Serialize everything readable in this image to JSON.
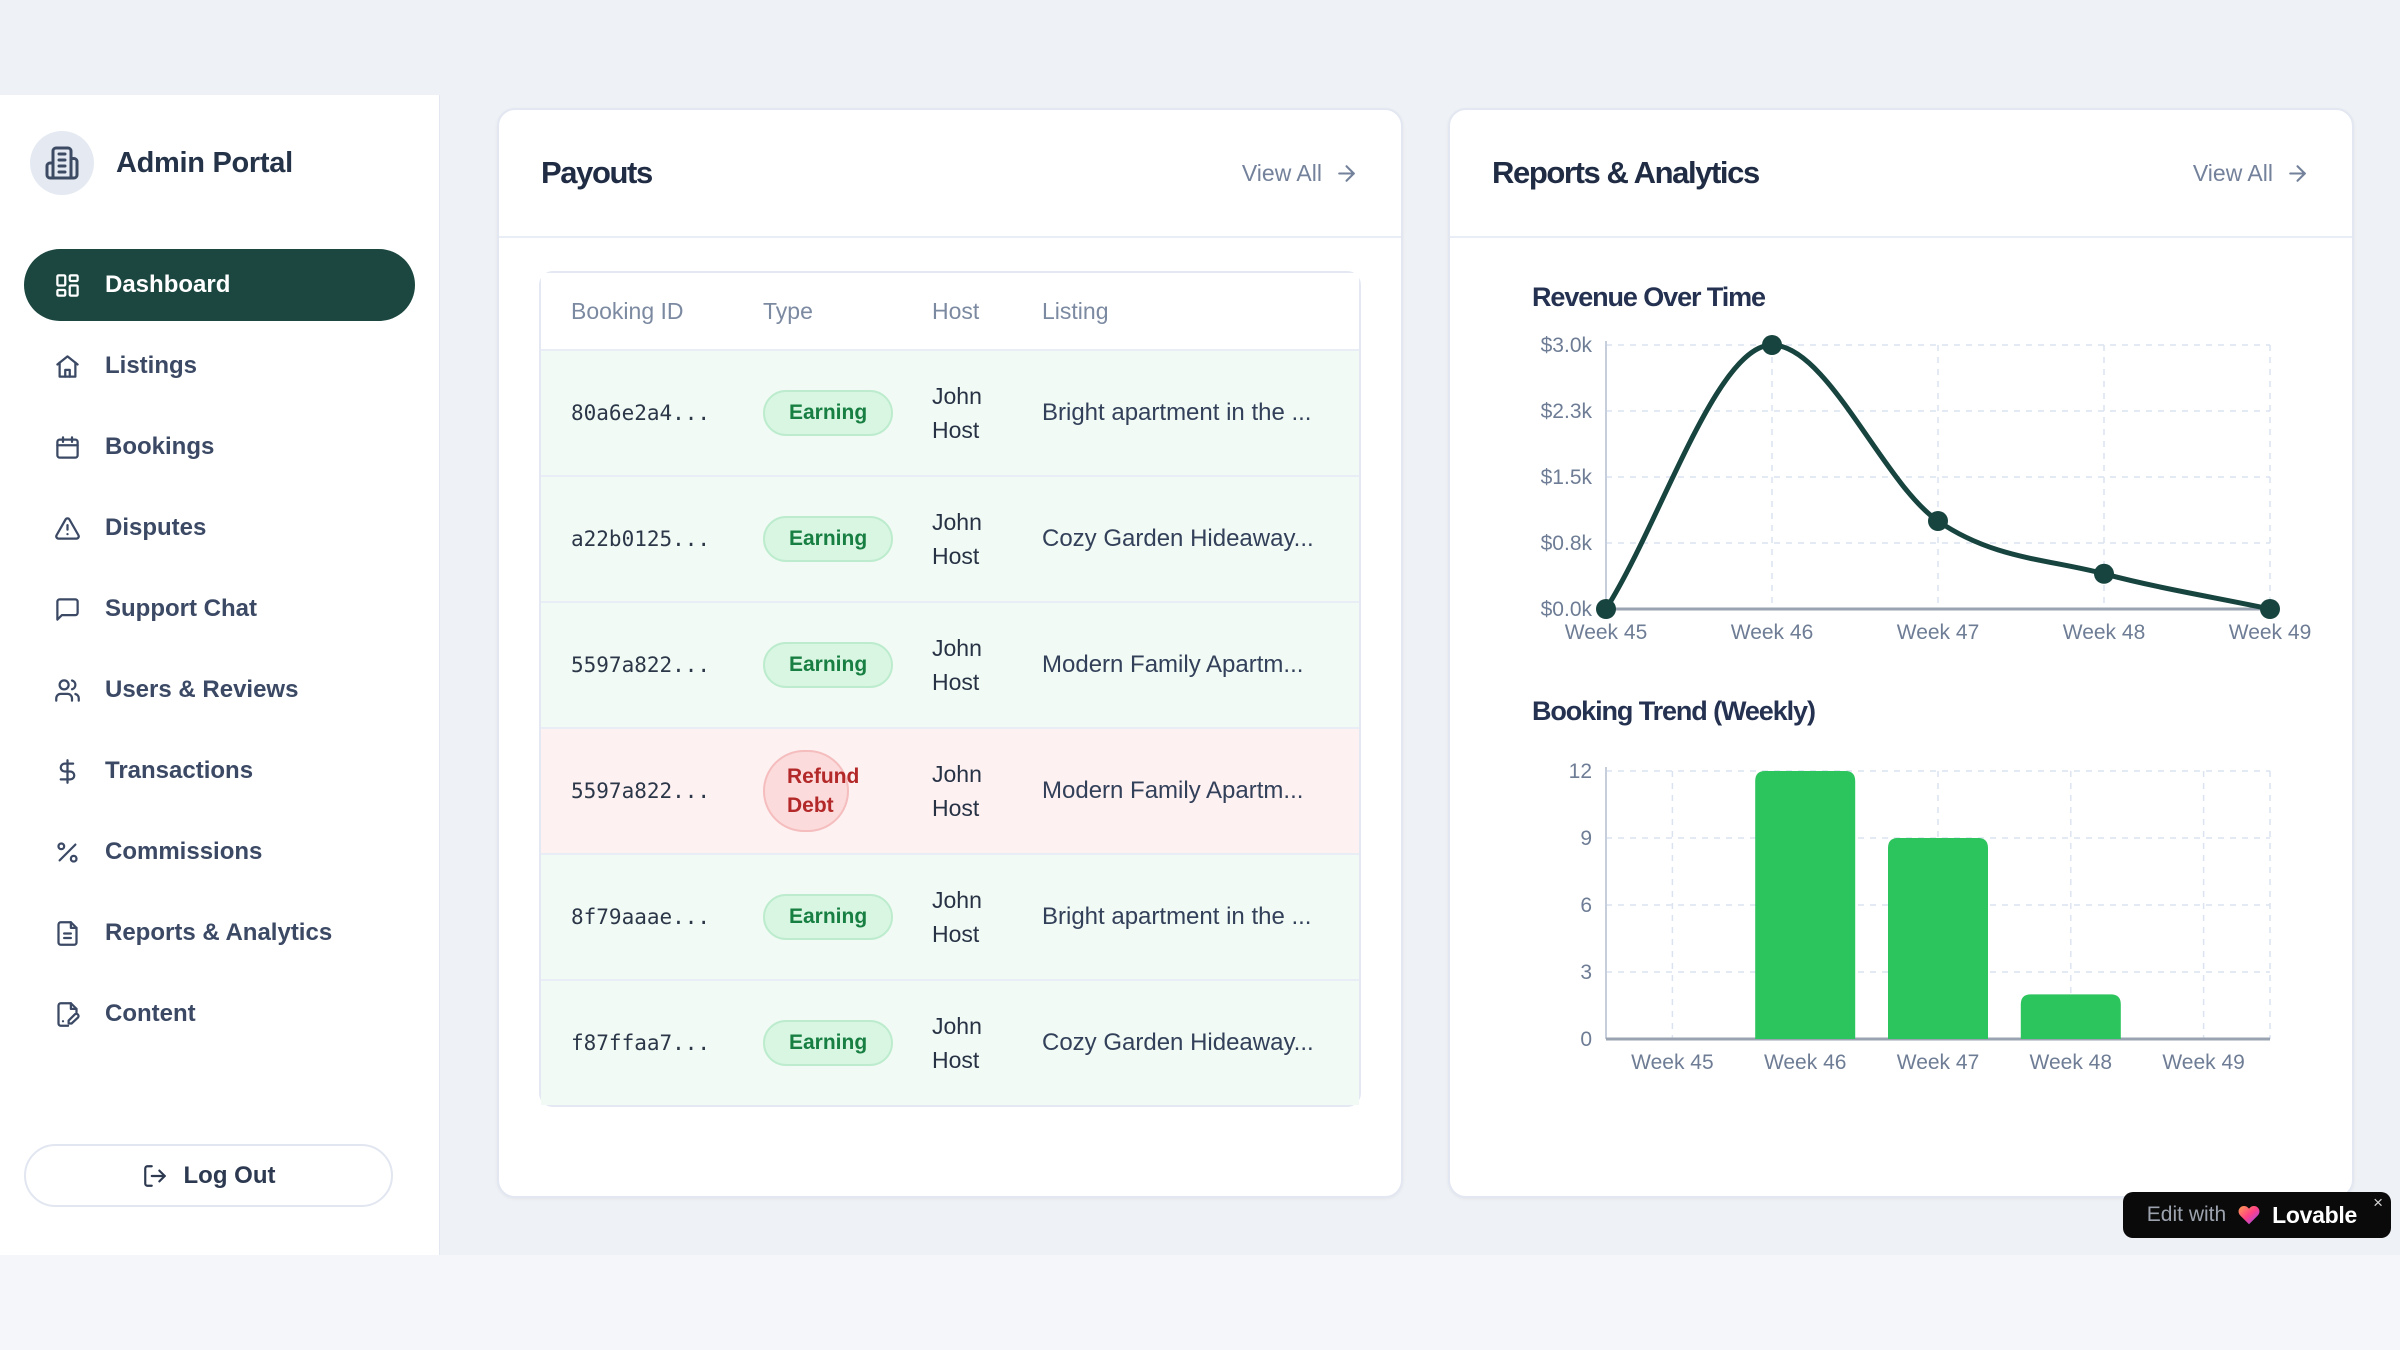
{
  "sidebar": {
    "brand": "Admin Portal",
    "items": [
      {
        "label": "Dashboard",
        "icon": "layout-dashboard",
        "active": true
      },
      {
        "label": "Listings",
        "icon": "home",
        "active": false
      },
      {
        "label": "Bookings",
        "icon": "calendar",
        "active": false
      },
      {
        "label": "Disputes",
        "icon": "alert-triangle",
        "active": false
      },
      {
        "label": "Support Chat",
        "icon": "message-square",
        "active": false
      },
      {
        "label": "Users & Reviews",
        "icon": "users",
        "active": false
      },
      {
        "label": "Transactions",
        "icon": "dollar-sign",
        "active": false
      },
      {
        "label": "Commissions",
        "icon": "percent",
        "active": false
      },
      {
        "label": "Reports & Analytics",
        "icon": "file-text",
        "active": false
      },
      {
        "label": "Content",
        "icon": "file-pen",
        "active": false
      }
    ],
    "logout": "Log Out"
  },
  "payouts": {
    "title": "Payouts",
    "view_all": "View All",
    "headers": [
      "Booking ID",
      "Type",
      "Host",
      "Listing"
    ],
    "rows": [
      {
        "booking_id": "80a6e2a4...",
        "type": "Earning",
        "host": "John Host",
        "listing": "Bright apartment in the ...",
        "variant": "earning"
      },
      {
        "booking_id": "a22b0125...",
        "type": "Earning",
        "host": "John Host",
        "listing": "Cozy Garden Hideaway...",
        "variant": "earning"
      },
      {
        "booking_id": "5597a822...",
        "type": "Earning",
        "host": "John Host",
        "listing": "Modern Family Apartm...",
        "variant": "earning"
      },
      {
        "booking_id": "5597a822...",
        "type": "Refund Debt",
        "host": "John Host",
        "listing": "Modern Family Apartm...",
        "variant": "refund"
      },
      {
        "booking_id": "8f79aaae...",
        "type": "Earning",
        "host": "John Host",
        "listing": "Bright apartment in the ...",
        "variant": "earning"
      },
      {
        "booking_id": "f87ffaa7...",
        "type": "Earning",
        "host": "John Host",
        "listing": "Cozy Garden Hideaway...",
        "variant": "earning"
      }
    ]
  },
  "reports": {
    "title": "Reports & Analytics",
    "view_all": "View All"
  },
  "chart_data": [
    {
      "type": "line",
      "title": "Revenue Over Time",
      "x": [
        "Week 45",
        "Week 46",
        "Week 47",
        "Week 48",
        "Week 49"
      ],
      "values": [
        0,
        3000,
        1000,
        400,
        0
      ],
      "xlabel": "",
      "ylabel": "",
      "ylim": [
        0,
        3000
      ],
      "yticks": [
        0,
        750,
        1500,
        2250,
        3000
      ],
      "ytick_labels": [
        "$0.0k",
        "$0.8k",
        "$1.5k",
        "$2.3k",
        "$3.0k"
      ],
      "line_color": "#17443f",
      "grid": "dashed",
      "legend": "none"
    },
    {
      "type": "bar",
      "title": "Booking Trend (Weekly)",
      "categories": [
        "Week 45",
        "Week 46",
        "Week 47",
        "Week 48",
        "Week 49"
      ],
      "values": [
        0,
        12,
        9,
        2,
        0
      ],
      "xlabel": "",
      "ylabel": "",
      "ylim": [
        0,
        12
      ],
      "yticks": [
        0,
        3,
        6,
        9,
        12
      ],
      "ytick_labels": [
        "0",
        "3",
        "6",
        "9",
        "12"
      ],
      "bar_color": "#2cc45c",
      "grid": "dashed",
      "legend": "none"
    }
  ],
  "lovable": {
    "prefix": "Edit with",
    "brand": "Lovable",
    "close": "×"
  },
  "colors": {
    "accent_dark_teal": "#1b4740",
    "bar_green": "#2cc45c",
    "earning_text": "#187f42",
    "refund_text": "#b32828",
    "page_bg": "#eef1f5"
  }
}
